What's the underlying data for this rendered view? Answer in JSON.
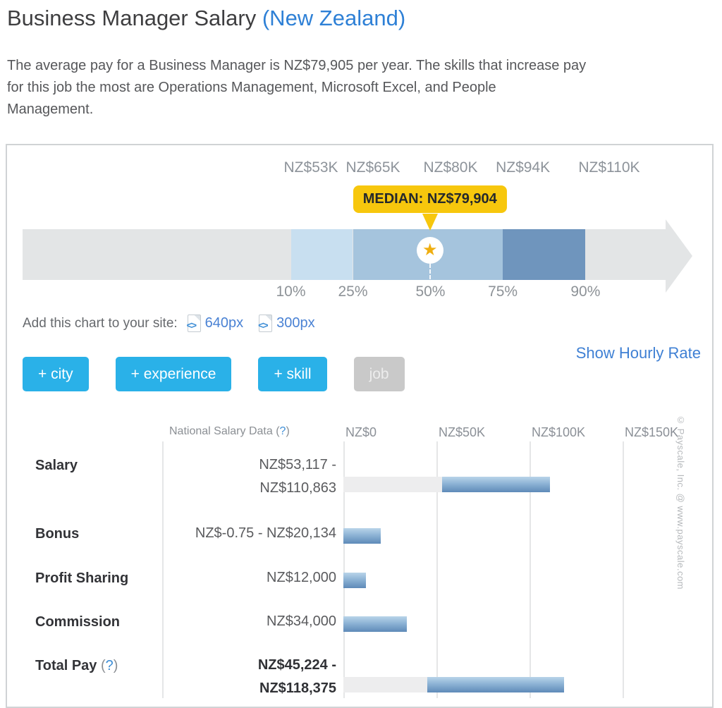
{
  "page": {
    "title_main": "Business Manager Salary",
    "title_region": "(New Zealand)",
    "intro_lines": [
      "The average pay for a Business Manager is NZ$79,905 per year. The skills that increase pay",
      "for this job the most are Operations Management, Microsoft Excel, and People",
      "Management."
    ]
  },
  "embed": {
    "label": "Add this chart to your site:",
    "icon": "embed-code-icon",
    "links": [
      "640px",
      "300px"
    ]
  },
  "buttons": [
    {
      "name": "add-city-button",
      "label": "+ city",
      "enabled": true
    },
    {
      "name": "add-experience-button",
      "label": "+ experience",
      "enabled": true
    },
    {
      "name": "add-skill-button",
      "label": "+ skill",
      "enabled": true
    },
    {
      "name": "job-button",
      "label": "job",
      "enabled": false
    }
  ],
  "show_hourly_label": "Show Hourly Rate",
  "colors": {
    "accent_blue": "#2ab1e8",
    "disabled_gray": "#c9c9c9",
    "link_blue": "#4a82d4",
    "median_yellow": "#f7c70d",
    "star_gold": "#efae10",
    "arrow_gray": "#e3e5e6",
    "track_gray": "#ededee",
    "bar_gradient_top": "#b9d4e9",
    "bar_gradient_bottom": "#5e8ab8"
  },
  "chart_data": [
    {
      "type": "percentile-arrow",
      "median_label": "MEDIAN: NZ$79,904",
      "median_value": 79904,
      "axis": {
        "min": 0,
        "max": 130000
      },
      "percentiles": [
        {
          "pct": "10%",
          "label": "NZ$53K",
          "value": 53000
        },
        {
          "pct": "25%",
          "label": "NZ$65K",
          "value": 65000
        },
        {
          "pct": "50%",
          "label": "NZ$80K",
          "value": 80000
        },
        {
          "pct": "75%",
          "label": "NZ$94K",
          "value": 94000
        },
        {
          "pct": "90%",
          "label": "NZ$110K",
          "value": 110000
        }
      ],
      "segments": [
        {
          "from": 53000,
          "to": 65000,
          "color": "#c8dff0"
        },
        {
          "from": 65000,
          "to": 94000,
          "color": "#a5c4dd"
        },
        {
          "from": 94000,
          "to": 110000,
          "color": "#6f95bd"
        }
      ]
    },
    {
      "type": "bar",
      "header_label": "National Salary Data",
      "help_mark": "(?)",
      "axis": {
        "min": 0,
        "max": 150000
      },
      "axis_ticks": [
        {
          "label": "NZ$0",
          "value": 0
        },
        {
          "label": "NZ$50K",
          "value": 50000
        },
        {
          "label": "NZ$100K",
          "value": 100000
        },
        {
          "label": "NZ$150K",
          "value": 150000
        }
      ],
      "rows": [
        {
          "label": "Salary",
          "help": false,
          "bold_value": false,
          "value_text": [
            "NZ$53,117 -",
            "NZ$110,863"
          ],
          "bar_from": 53117,
          "bar_to": 110863
        },
        {
          "label": "Bonus",
          "help": false,
          "bold_value": false,
          "value_text": [
            "NZ$-0.75 - NZ$20,134"
          ],
          "bar_from": 0,
          "bar_to": 20134
        },
        {
          "label": "Profit Sharing",
          "help": false,
          "bold_value": false,
          "value_text": [
            "NZ$12,000"
          ],
          "bar_from": 0,
          "bar_to": 12000
        },
        {
          "label": "Commission",
          "help": false,
          "bold_value": false,
          "value_text": [
            "NZ$34,000"
          ],
          "bar_from": 0,
          "bar_to": 34000
        },
        {
          "label": "Total Pay",
          "help": true,
          "bold_value": true,
          "value_text": [
            "NZ$45,224 -",
            "NZ$118,375"
          ],
          "bar_from": 45224,
          "bar_to": 118375
        }
      ],
      "watermark": "© Payscale, Inc. @ www.payscale.com"
    }
  ]
}
